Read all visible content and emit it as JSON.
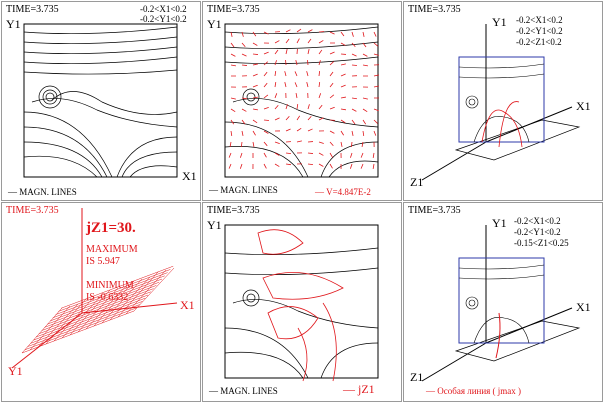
{
  "colors": {
    "field_line": "#000000",
    "highlight": "#e0161b",
    "frame": "#9a9a9a"
  },
  "panels": [
    {
      "time": "TIME=3.735",
      "ranges": [
        "-0.2<X1<0.2",
        "-0.2<Y1<0.2"
      ],
      "y_axis": "Y1",
      "x_axis": "X1",
      "legend": "MAGN. LINES"
    },
    {
      "time": "TIME=3.735",
      "y_axis": "Y1",
      "legend": "MAGN. LINES",
      "vector_legend": "V=4.847E-2"
    },
    {
      "time": "TIME=3.735",
      "ranges": [
        "-0.2<X1<0.2",
        "-0.2<Y1<0.2",
        "-0.2<Z1<0.2"
      ],
      "y_axis": "Y1",
      "x_axis": "X1",
      "z_axis": "Z1"
    },
    {
      "time": "TIME=3.735",
      "jz_label": "jZ1=30.",
      "max_label": "MAXIMUM",
      "max_value": "IS 5.947",
      "min_label": "MINIMUM",
      "min_value": "IS -0.6332",
      "x_axis": "X1",
      "y_axis": "Y1"
    },
    {
      "time": "TIME=3.735",
      "y_axis": "Y1",
      "legend": "MAGN. LINES",
      "current_legend": "jZ1"
    },
    {
      "time": "TIME=3.735",
      "ranges": [
        "-0.2<X1<0.2",
        "-0.2<Y1<0.2",
        "-0.15<Z1<0.25"
      ],
      "y_axis": "Y1",
      "x_axis": "X1",
      "z_axis": "Z1",
      "legend": "Особая линия ( jmax )"
    }
  ]
}
